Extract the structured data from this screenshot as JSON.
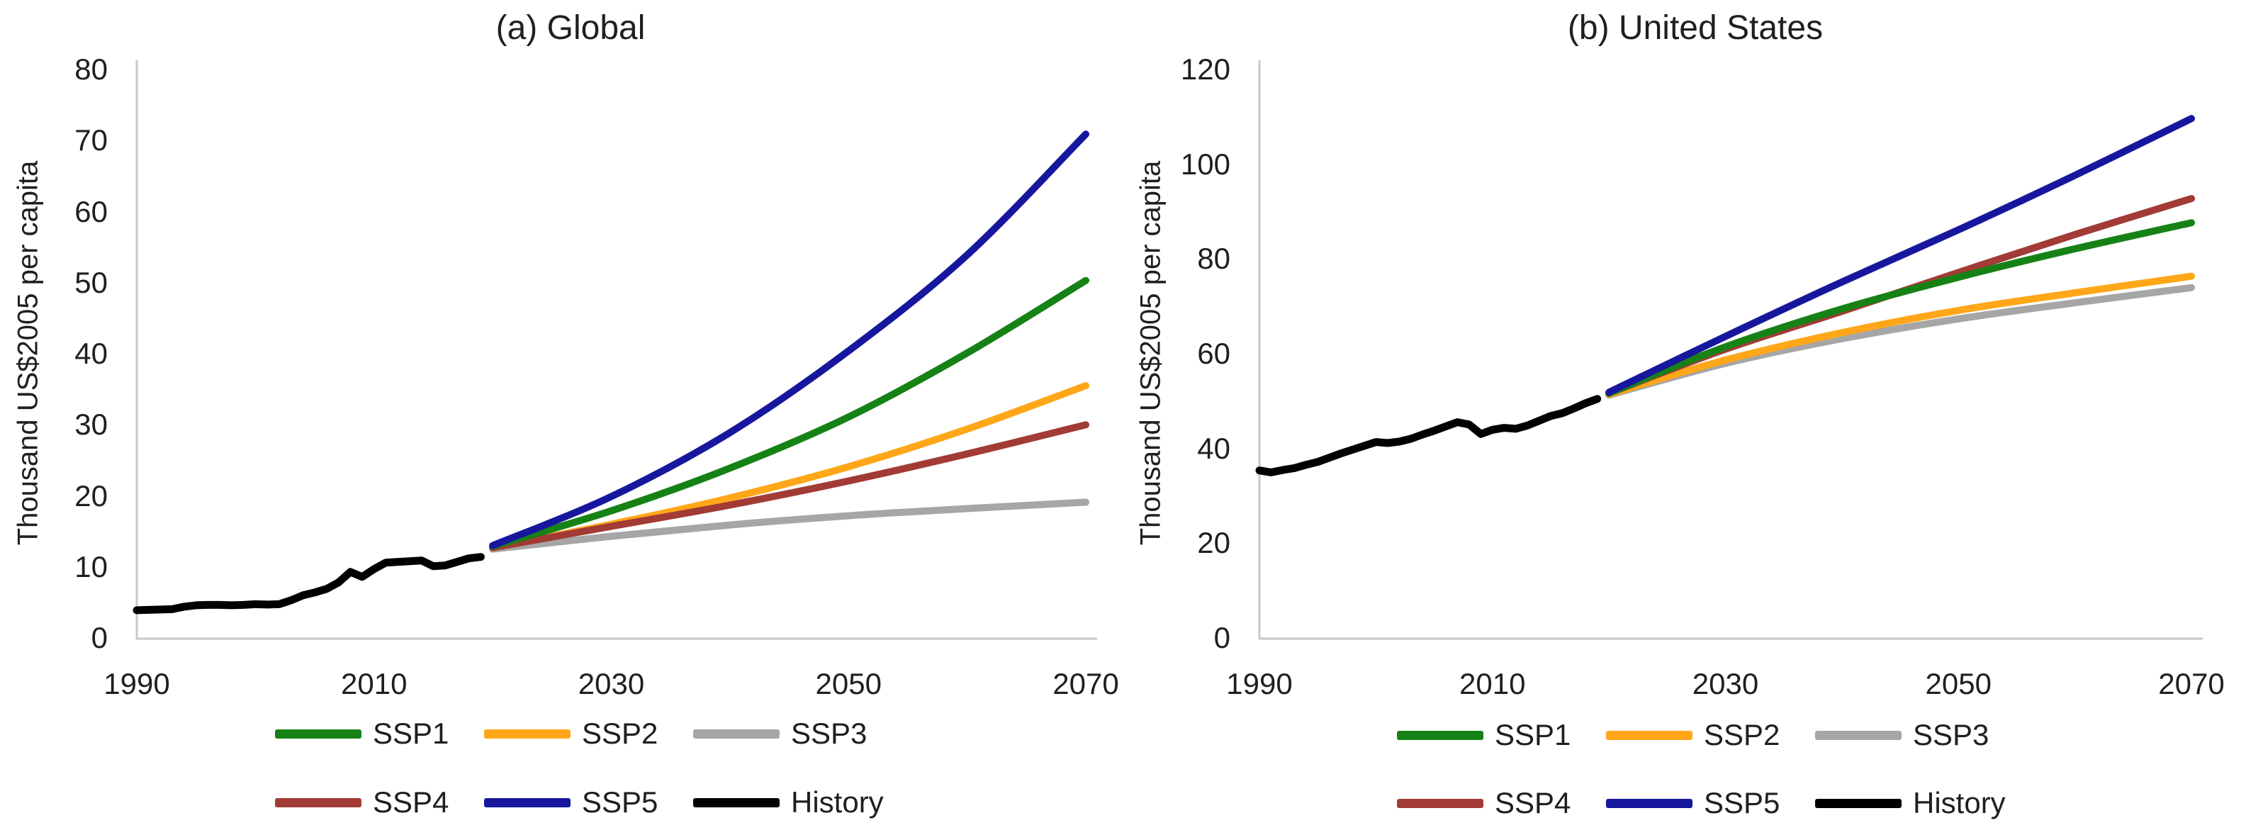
{
  "figure": {
    "background": "#ffffff",
    "text_color": "#1f1f1f",
    "axis_color": "#c9c9c9"
  },
  "panels": [
    {
      "title": "(a) Global",
      "y_axis_title": "Thousand US$2005 per capita"
    },
    {
      "title": "(b) United States",
      "y_axis_title": "Thousand US$2005 per capita"
    }
  ],
  "legend": {
    "rows": [
      [
        {
          "label": "SSP1",
          "color": "#168216"
        },
        {
          "label": "SSP2",
          "color": "#FFA719"
        },
        {
          "label": "SSP3",
          "color": "#A6A6A6"
        }
      ],
      [
        {
          "label": "SSP4",
          "color": "#A23B35"
        },
        {
          "label": "SSP5",
          "color": "#17179E"
        },
        {
          "label": "History",
          "color": "#000000"
        }
      ]
    ]
  },
  "chart_data": [
    {
      "type": "line",
      "title": "(a) Global",
      "xlabel": "",
      "ylabel": "Thousand US$2005 per capita",
      "xlim": [
        1990,
        2070
      ],
      "ylim": [
        0,
        80
      ],
      "xticks": [
        1990,
        2010,
        2030,
        2050,
        2070
      ],
      "yticks": [
        0,
        10,
        20,
        30,
        40,
        50,
        60,
        70,
        80
      ],
      "grid": false,
      "legend_position": "bottom",
      "series": [
        {
          "name": "History",
          "color": "#000000",
          "x_start": 1990,
          "x_step": 1,
          "values": [
            3.8,
            3.85,
            3.9,
            3.95,
            4.3,
            4.5,
            4.55,
            4.55,
            4.5,
            4.55,
            4.65,
            4.6,
            4.65,
            5.2,
            5.9,
            6.3,
            6.8,
            7.7,
            9.2,
            8.5,
            9.6,
            10.5,
            10.6,
            10.7,
            10.8,
            10.0,
            10.1,
            10.6,
            11.1,
            11.3
          ]
        },
        {
          "name": "SSP1",
          "color": "#168216",
          "x": [
            2020,
            2030,
            2040,
            2050,
            2060,
            2070
          ],
          "values": [
            12.8,
            17.8,
            23.8,
            31.0,
            40.0,
            50.2
          ]
        },
        {
          "name": "SSP2",
          "color": "#FFA719",
          "x": [
            2020,
            2030,
            2040,
            2050,
            2060,
            2070
          ],
          "values": [
            12.6,
            15.9,
            19.6,
            24.0,
            29.3,
            35.4
          ]
        },
        {
          "name": "SSP3",
          "color": "#A6A6A6",
          "x": [
            2020,
            2030,
            2040,
            2050,
            2060,
            2070
          ],
          "values": [
            12.4,
            14.2,
            15.8,
            17.1,
            18.1,
            19.0
          ]
        },
        {
          "name": "SSP4",
          "color": "#A23B35",
          "x": [
            2020,
            2030,
            2040,
            2050,
            2060,
            2070
          ],
          "values": [
            12.6,
            15.6,
            18.6,
            22.0,
            25.8,
            29.9
          ]
        },
        {
          "name": "SSP5",
          "color": "#17179E",
          "x": [
            2020,
            2030,
            2040,
            2050,
            2060,
            2070
          ],
          "values": [
            12.9,
            19.8,
            28.8,
            40.3,
            53.8,
            70.8
          ]
        }
      ]
    },
    {
      "type": "line",
      "title": "(b) United States",
      "xlabel": "",
      "ylabel": "Thousand US$2005 per capita",
      "xlim": [
        1990,
        2070
      ],
      "ylim": [
        0,
        120
      ],
      "xticks": [
        1990,
        2010,
        2030,
        2050,
        2070
      ],
      "yticks": [
        0,
        20,
        40,
        60,
        80,
        100,
        120
      ],
      "grid": false,
      "legend_position": "bottom",
      "series": [
        {
          "name": "History",
          "color": "#000000",
          "x_start": 1990,
          "x_step": 1,
          "values": [
            35.2,
            34.8,
            35.3,
            35.7,
            36.4,
            37.0,
            37.9,
            38.8,
            39.6,
            40.4,
            41.2,
            41.0,
            41.3,
            41.9,
            42.8,
            43.6,
            44.5,
            45.4,
            44.9,
            42.9,
            43.8,
            44.2,
            44.0,
            44.7,
            45.7,
            46.7,
            47.3,
            48.3,
            49.4,
            50.3
          ]
        },
        {
          "name": "SSP1",
          "color": "#168216",
          "x": [
            2020,
            2030,
            2040,
            2050,
            2060,
            2070
          ],
          "values": [
            51.5,
            61.3,
            69.3,
            76.0,
            82.0,
            87.5
          ]
        },
        {
          "name": "SSP2",
          "color": "#FFA719",
          "x": [
            2020,
            2030,
            2040,
            2050,
            2060,
            2070
          ],
          "values": [
            51.3,
            58.5,
            64.3,
            69.0,
            72.7,
            76.2
          ]
        },
        {
          "name": "SSP3",
          "color": "#A6A6A6",
          "x": [
            2020,
            2030,
            2040,
            2050,
            2060,
            2070
          ],
          "values": [
            51.1,
            57.8,
            63.0,
            67.2,
            70.6,
            73.8
          ]
        },
        {
          "name": "SSP4",
          "color": "#A23B35",
          "x": [
            2020,
            2030,
            2040,
            2050,
            2060,
            2070
          ],
          "values": [
            51.5,
            60.8,
            68.8,
            77.0,
            85.0,
            92.6
          ]
        },
        {
          "name": "SSP5",
          "color": "#17179E",
          "x": [
            2020,
            2030,
            2040,
            2050,
            2060,
            2070
          ],
          "values": [
            51.7,
            63.5,
            75.0,
            86.0,
            97.5,
            109.5
          ]
        }
      ]
    }
  ]
}
